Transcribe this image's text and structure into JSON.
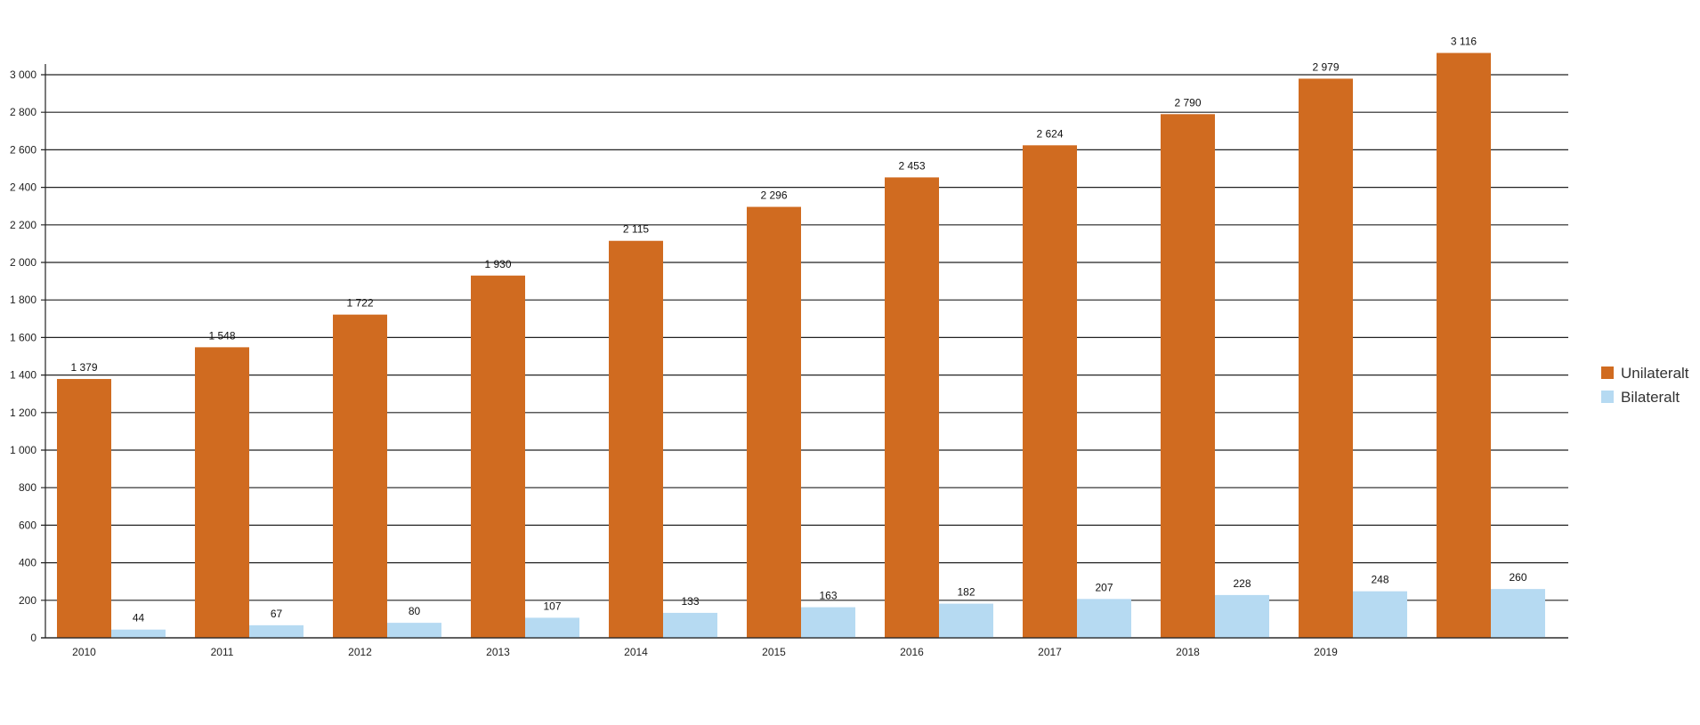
{
  "chart_data": {
    "type": "bar",
    "categories": [
      "2010",
      "2011",
      "2012",
      "2013",
      "2014",
      "2015",
      "2016",
      "2017",
      "2018",
      "2019",
      ""
    ],
    "series": [
      {
        "name": "Unilateralt",
        "color": "#d06b20",
        "values": [
          1379,
          1548,
          1722,
          1930,
          2115,
          2296,
          2453,
          2624,
          2790,
          2979,
          3116
        ],
        "labels": [
          "1 379",
          "1 548",
          "1 722",
          "1 930",
          "2 115",
          "2 296",
          "2 453",
          "2 624",
          "2 790",
          "2 979",
          "3 116"
        ]
      },
      {
        "name": "Bilateralt",
        "color": "#b6daf2",
        "values": [
          44,
          67,
          80,
          107,
          133,
          163,
          182,
          207,
          228,
          248,
          260
        ],
        "labels": [
          "44",
          "67",
          "80",
          "107",
          "133",
          "163",
          "182",
          "207",
          "228",
          "248",
          "260"
        ]
      }
    ],
    "y_ticks": [
      0,
      200,
      400,
      600,
      800,
      1000,
      1200,
      1400,
      1600,
      1800,
      2000,
      2200,
      2400,
      2600,
      2800,
      3000
    ],
    "y_tick_labels": [
      "0",
      "200",
      "400",
      "600",
      "800",
      "1 000",
      "1 200",
      "1 400",
      "1 600",
      "1 800",
      "2 000",
      "2 200",
      "2 400",
      "2 600",
      "2 800",
      "3 000"
    ],
    "ylim": [
      0,
      3000
    ],
    "grid": true,
    "legend_position": "right",
    "title": "",
    "xlabel": "",
    "ylabel": ""
  }
}
